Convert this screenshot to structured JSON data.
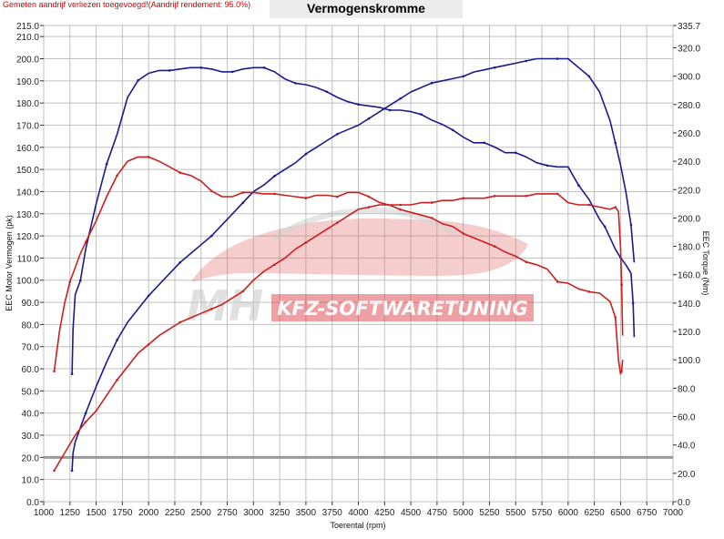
{
  "header": {
    "note": "Gemeten aandrijf verliezen toegevoegd!(Aandrijf rendement: 95.0%)",
    "title": "Vermogenskromme"
  },
  "watermark": {
    "logo_letters": "MH",
    "text": "KFZ-SOFTWARETUNING"
  },
  "chart_data": {
    "type": "line",
    "title": "Vermogenskromme",
    "xlabel": "Toerental (rpm)",
    "ylabel_left": "EEC Motor Vermogen (pk)",
    "ylabel_right": "EEC Torque (Nm)",
    "xlim": [
      1000,
      7000
    ],
    "ylim_left": [
      0,
      215.0
    ],
    "ylim_right": [
      0,
      335.7
    ],
    "x_ticks": [
      1000,
      1250,
      1500,
      1750,
      2000,
      2250,
      2500,
      2750,
      3000,
      3250,
      3500,
      3750,
      4000,
      4250,
      4500,
      4750,
      5000,
      5250,
      5500,
      5750,
      6000,
      6250,
      6500,
      6750,
      7000
    ],
    "left_ticks": [
      "0.0",
      "10.0",
      "20.0",
      "30.0",
      "40.0",
      "50.0",
      "60.0",
      "70.0",
      "80.0",
      "90.0",
      "100.0",
      "110.0",
      "120.0",
      "130.0",
      "140.0",
      "150.0",
      "160.0",
      "170.0",
      "180.0",
      "190.0",
      "200.0",
      "210.0",
      "215.0"
    ],
    "right_ticks": [
      "0.0",
      "20.0",
      "40.0",
      "60.0",
      "80.0",
      "100.0",
      "120.0",
      "140.0",
      "160.0",
      "180.0",
      "200.0",
      "220.0",
      "240.0",
      "260.0",
      "280.0",
      "300.0",
      "320.0",
      "335.7"
    ],
    "reference_line_left": 20.0,
    "colors": {
      "blue": "#1a1a8c",
      "red": "#cc1f1f",
      "grid": "#bfbfbf",
      "reference": "#9a9a9a"
    },
    "series": [
      {
        "key": "blue_torque",
        "axis": "right",
        "color": "#1a1a8c",
        "x": [
          1270,
          1280,
          1300,
          1350,
          1400,
          1500,
          1600,
          1700,
          1800,
          1900,
          2000,
          2100,
          2200,
          2300,
          2400,
          2500,
          2600,
          2700,
          2800,
          2900,
          3000,
          3100,
          3200,
          3300,
          3400,
          3500,
          3600,
          3700,
          3800,
          3900,
          4000,
          4100,
          4200,
          4300,
          4400,
          4500,
          4600,
          4700,
          4800,
          4900,
          5000,
          5100,
          5200,
          5300,
          5400,
          5500,
          5600,
          5700,
          5800,
          5900,
          6000,
          6100,
          6200,
          6300,
          6350,
          6400,
          6450,
          6500,
          6550,
          6600,
          6620,
          6630
        ],
        "y": [
          90,
          122,
          146,
          156,
          178,
          210,
          238,
          259,
          285,
          297,
          302,
          304,
          304,
          305,
          306,
          306,
          305,
          303,
          303,
          305,
          306,
          306,
          303,
          298,
          295,
          294,
          292,
          289,
          285,
          282,
          280,
          279,
          278,
          276,
          276,
          275,
          273,
          269,
          266,
          262,
          257,
          253,
          253,
          250,
          246,
          246,
          243,
          239,
          237,
          236,
          236,
          223,
          213,
          199,
          194,
          186,
          178,
          172,
          167,
          161,
          140,
          116
        ]
      },
      {
        "key": "blue_power",
        "axis": "left",
        "color": "#1a1a8c",
        "x": [
          1270,
          1280,
          1300,
          1400,
          1500,
          1600,
          1700,
          1800,
          1900,
          2000,
          2100,
          2200,
          2300,
          2400,
          2500,
          2600,
          2700,
          2800,
          2900,
          3000,
          3100,
          3200,
          3300,
          3400,
          3500,
          3600,
          3700,
          3800,
          3900,
          4000,
          4100,
          4200,
          4300,
          4400,
          4500,
          4600,
          4700,
          4800,
          4900,
          5000,
          5100,
          5200,
          5300,
          5400,
          5500,
          5600,
          5700,
          5800,
          5900,
          6000,
          6100,
          6200,
          6300,
          6400,
          6450,
          6500,
          6550,
          6600,
          6630
        ],
        "y": [
          14,
          22,
          27,
          40,
          52,
          63,
          73,
          81,
          87,
          93,
          98,
          103,
          108,
          112,
          116,
          120,
          125,
          130,
          135,
          140,
          143,
          147,
          150,
          153,
          157,
          160,
          163,
          166,
          168,
          170,
          173,
          176,
          179,
          182,
          185,
          187,
          189,
          190,
          191,
          192,
          194,
          195,
          196,
          197,
          198,
          199,
          200,
          200,
          200,
          200,
          196,
          192,
          185,
          172,
          162,
          152,
          140,
          125,
          108
        ]
      },
      {
        "key": "red_torque",
        "axis": "right",
        "color": "#cc1f1f",
        "x": [
          1100,
          1150,
          1200,
          1250,
          1300,
          1350,
          1400,
          1500,
          1600,
          1700,
          1800,
          1900,
          2000,
          2100,
          2200,
          2300,
          2400,
          2500,
          2600,
          2700,
          2800,
          2900,
          3000,
          3100,
          3200,
          3300,
          3400,
          3500,
          3600,
          3700,
          3800,
          3900,
          4000,
          4100,
          4200,
          4300,
          4400,
          4500,
          4600,
          4700,
          4800,
          4900,
          5000,
          5100,
          5200,
          5300,
          5400,
          5500,
          5600,
          5700,
          5800,
          5900,
          6000,
          6100,
          6200,
          6300,
          6400,
          6450,
          6480,
          6500,
          6510,
          6520
        ],
        "y": [
          92,
          120,
          140,
          155,
          165,
          175,
          183,
          198,
          215,
          230,
          240,
          243,
          243,
          240,
          236,
          232,
          230,
          226,
          219,
          215,
          215,
          218,
          218,
          217,
          217,
          216,
          215,
          214,
          216,
          216,
          215,
          218,
          218,
          215,
          211,
          209,
          206,
          204,
          202,
          200,
          196,
          194,
          189,
          186,
          183,
          180,
          176,
          173,
          169,
          167,
          164,
          155,
          154,
          150,
          148,
          147,
          141,
          130,
          100,
          90,
          92,
          100
        ]
      },
      {
        "key": "red_power",
        "axis": "left",
        "color": "#cc1f1f",
        "x": [
          1100,
          1200,
          1300,
          1400,
          1500,
          1600,
          1700,
          1800,
          1900,
          2000,
          2100,
          2200,
          2300,
          2400,
          2500,
          2600,
          2700,
          2800,
          2900,
          3000,
          3100,
          3200,
          3300,
          3400,
          3500,
          3600,
          3700,
          3800,
          3900,
          4000,
          4100,
          4200,
          4300,
          4400,
          4500,
          4600,
          4700,
          4800,
          4900,
          5000,
          5100,
          5200,
          5300,
          5400,
          5500,
          5600,
          5700,
          5800,
          5900,
          6000,
          6100,
          6200,
          6300,
          6400,
          6450,
          6480,
          6500,
          6510,
          6520
        ],
        "y": [
          14,
          22,
          30,
          36,
          41,
          48,
          55,
          61,
          67,
          71,
          75,
          78,
          81,
          83,
          85,
          87,
          89,
          92,
          95,
          100,
          104,
          107,
          110,
          114,
          117,
          120,
          123,
          126,
          129,
          132,
          133,
          134,
          134,
          134,
          134,
          135,
          135,
          136,
          136,
          137,
          137,
          137,
          138,
          138,
          138,
          138,
          139,
          139,
          139,
          135,
          134,
          134,
          133,
          132,
          133,
          131,
          115,
          98,
          75
        ]
      }
    ]
  }
}
